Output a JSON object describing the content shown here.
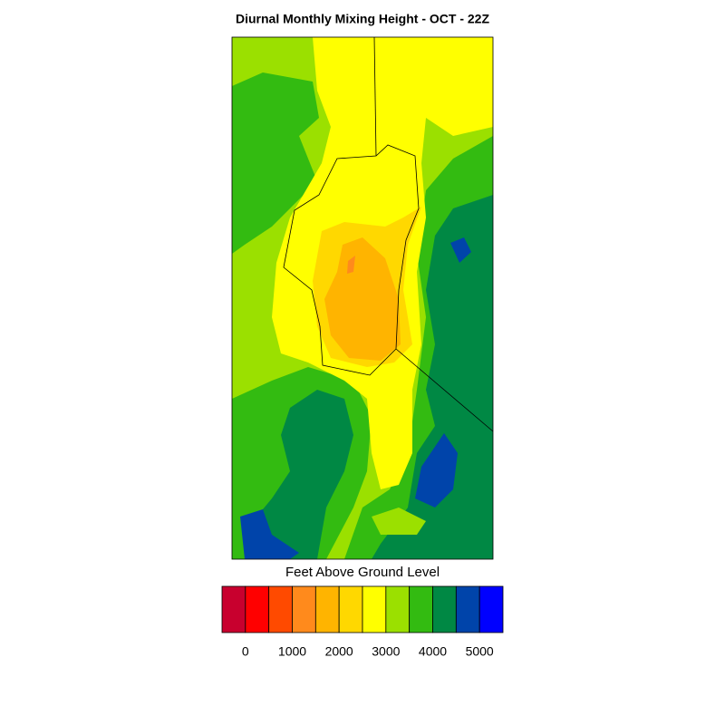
{
  "map": {
    "title": "Diurnal Monthly Mixing Height - OCT - 22Z",
    "colorbar": {
      "label": "Feet Above Ground Level",
      "colors": [
        "#c8002e",
        "#ff0000",
        "#ff4a00",
        "#ff8a1c",
        "#ffb400",
        "#ffd800",
        "#ffff00",
        "#9be000",
        "#33bb11",
        "#008844",
        "#0044aa",
        "#0000ff"
      ],
      "ticks": [
        0,
        1000,
        2000,
        3000,
        4000,
        5000
      ]
    }
  }
}
